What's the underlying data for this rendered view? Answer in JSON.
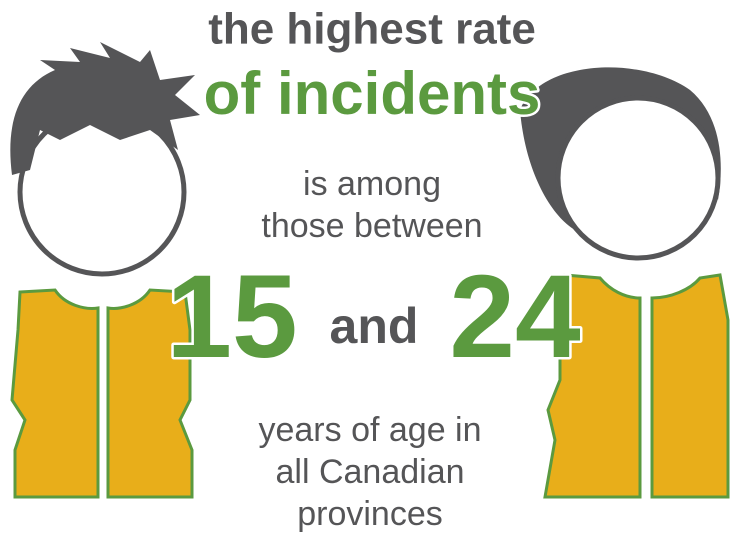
{
  "heading": {
    "line1": "the highest rate",
    "line2": "of incidents"
  },
  "middle": {
    "lines": [
      "is among",
      "those between"
    ]
  },
  "range": {
    "from": 15,
    "joiner": "and",
    "to": 24
  },
  "footer": {
    "lines": [
      "years of age in",
      "all Canadian",
      "provinces"
    ]
  }
}
